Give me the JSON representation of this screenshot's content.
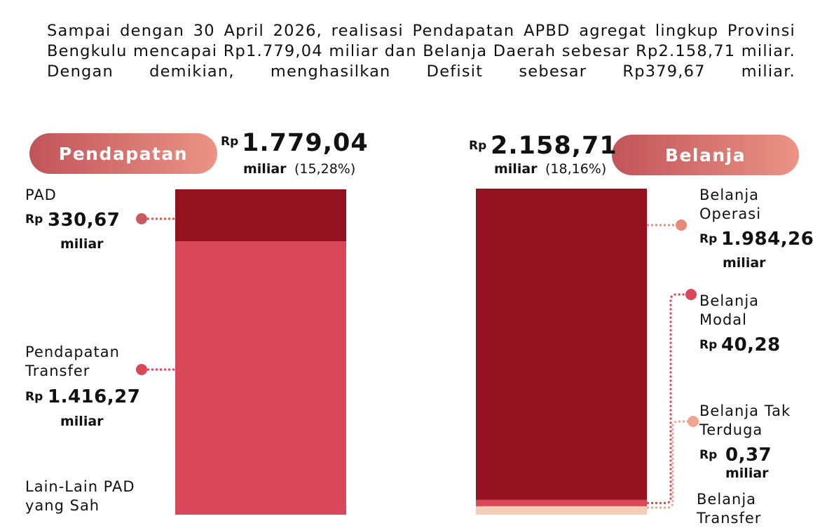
{
  "paragraph": "Sampai dengan 30 April 2026, realisasi Pendapatan APBD agregat lingkup Provinsi Bengkulu mencapai Rp1.779,04 miliar dan Belanja Daerah sebesar Rp2.158,71 miliar. Dengan demikian, menghasilkan Defisit sebesar Rp379,67 miliar.",
  "currency": "Rp",
  "unit": "miliar",
  "pendapatan": {
    "title": "Pendapatan",
    "total": 1779.04,
    "total_label": "1.779,04",
    "share": "(15,28%)",
    "items": [
      {
        "name": "PAD",
        "value": 330.67,
        "value_label": "330,67",
        "color": "#94121f"
      },
      {
        "name": "Pendapatan Transfer",
        "value": 1416.27,
        "value_label": "1.416,27",
        "color": "#d9475a"
      },
      {
        "name": "Lain-Lain PAD yang Sah"
      }
    ]
  },
  "belanja": {
    "title": "Belanja",
    "total": 2158.71,
    "total_label": "2.158,71",
    "share": "(18,16%)",
    "items": [
      {
        "name": "Belanja Operasi",
        "value": 1984.26,
        "value_label": "1.984,26",
        "color": "#94121f"
      },
      {
        "name": "Belanja Modal",
        "value": 40.28,
        "value_label": "40,28",
        "color": "#d9475a"
      },
      {
        "name": "Belanja Tak Terduga",
        "value": 0.37,
        "value_label": "0,37",
        "color": "#f0a58f"
      },
      {
        "name": "Belanja Transfer"
      }
    ]
  }
}
